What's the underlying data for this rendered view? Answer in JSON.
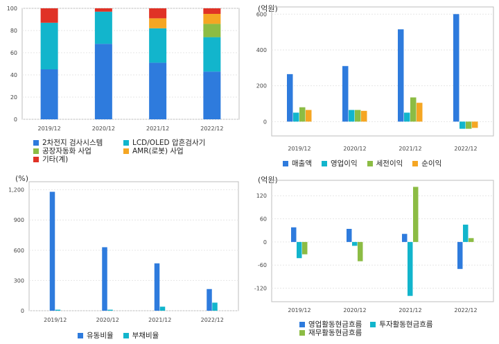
{
  "chart_data": [
    {
      "type": "bar",
      "stacked": true,
      "categories": [
        "2019/12",
        "2020/12",
        "2021/12",
        "2022/12"
      ],
      "ylim": [
        0,
        100
      ],
      "yticks": [
        "0",
        "20",
        "40",
        "60",
        "80",
        "100"
      ],
      "series": [
        {
          "name": "2차전지 검사시스템",
          "color": "#2e7bdd",
          "values": [
            45,
            68,
            51,
            43
          ]
        },
        {
          "name": "LCD/OLED 압흔검사기",
          "color": "#12b5cc",
          "values": [
            42,
            29,
            31,
            31
          ]
        },
        {
          "name": "공장자동화 사업",
          "color": "#8cbc44",
          "values": [
            0,
            0,
            0,
            12
          ]
        },
        {
          "name": "AMR(로봇) 사업",
          "color": "#f5a623",
          "values": [
            0,
            0,
            9,
            9
          ]
        },
        {
          "name": "기타(계)",
          "color": "#e03226",
          "values": [
            13,
            3,
            9,
            5
          ]
        }
      ],
      "grid": true
    },
    {
      "type": "bar",
      "unit": "(억원)",
      "categories": [
        "2019/12",
        "2020/12",
        "2021/12",
        "2022/12"
      ],
      "ylim": [
        -80,
        640
      ],
      "yticks": [
        "0",
        "200",
        "400",
        "600"
      ],
      "series": [
        {
          "name": "매출액",
          "color": "#2e7bdd",
          "values": [
            265,
            310,
            515,
            600
          ]
        },
        {
          "name": "영업이익",
          "color": "#12b5cc",
          "values": [
            50,
            65,
            50,
            -40
          ]
        },
        {
          "name": "세전이익",
          "color": "#8cbc44",
          "values": [
            80,
            65,
            135,
            -40
          ]
        },
        {
          "name": "순이익",
          "color": "#f5a623",
          "values": [
            65,
            60,
            105,
            -35
          ]
        }
      ],
      "grid": true
    },
    {
      "type": "bar",
      "unit": "(%)",
      "categories": [
        "2019/12",
        "2020/12",
        "2021/12",
        "2022/12"
      ],
      "ylim": [
        0,
        1280
      ],
      "yticks": [
        "0",
        "300",
        "600",
        "900",
        "1,200"
      ],
      "series": [
        {
          "name": "유동비율",
          "color": "#2e7bdd",
          "values": [
            1180,
            630,
            470,
            215
          ]
        },
        {
          "name": "부채비율",
          "color": "#12b5cc",
          "values": [
            10,
            10,
            40,
            80
          ]
        }
      ],
      "grid": true
    },
    {
      "type": "bar",
      "unit": "(억원)",
      "categories": [
        "2019/12",
        "2020/12",
        "2021/12",
        "2022/12"
      ],
      "ylim": [
        -155,
        160
      ],
      "yticks": [
        "-120",
        "-60",
        "0",
        "60",
        "120"
      ],
      "series": [
        {
          "name": "영업활동현금흐름",
          "color": "#2e7bdd",
          "values": [
            38,
            34,
            21,
            -70
          ]
        },
        {
          "name": "투자활동현금흐름",
          "color": "#12b5cc",
          "values": [
            -42,
            -10,
            -140,
            45
          ]
        },
        {
          "name": "재무활동현금흐름",
          "color": "#8cbc44",
          "values": [
            -32,
            -50,
            143,
            10
          ]
        }
      ],
      "grid": true
    }
  ]
}
